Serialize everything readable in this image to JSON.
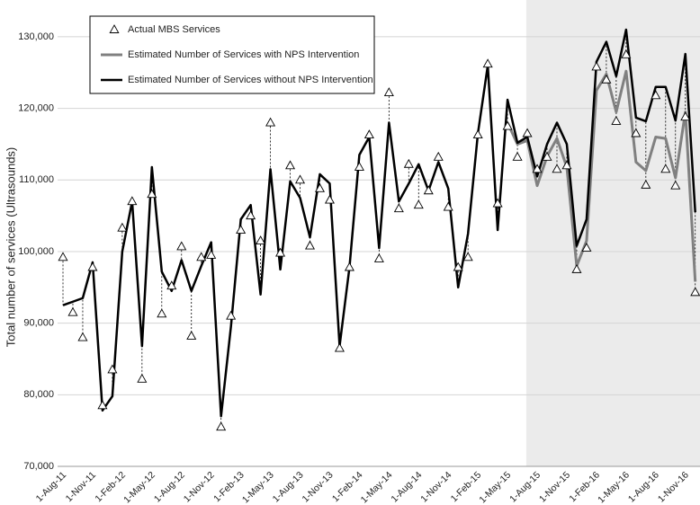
{
  "chart_data": {
    "type": "line",
    "y_label": "Total number of services (Ultrasounds)",
    "categories": [
      "1-Aug-11",
      null,
      null,
      "1-Nov-11",
      null,
      null,
      "1-Feb-12",
      null,
      null,
      "1-May-12",
      null,
      null,
      "1-Aug-12",
      null,
      null,
      "1-Nov-12",
      null,
      null,
      "1-Feb-13",
      null,
      null,
      "1-May-13",
      null,
      null,
      "1-Aug-13",
      null,
      null,
      "1-Nov-13",
      null,
      null,
      "1-Feb-14",
      null,
      null,
      "1-May-14",
      null,
      null,
      "1-Aug-14",
      null,
      null,
      "1-Nov-14",
      null,
      null,
      "1-Feb-15",
      null,
      null,
      "1-May-15",
      null,
      null,
      "1-Aug-15",
      null,
      null,
      "1-Nov-15",
      null,
      null,
      "1-Feb-16",
      null,
      null,
      "1-May-16",
      null,
      null,
      "1-Aug-16",
      null,
      null,
      "1-Nov-16",
      null
    ],
    "series": [
      {
        "name": "Actual MBS Services",
        "mode": "markers",
        "color": "#000000",
        "values": [
          99200,
          91500,
          88000,
          97800,
          78500,
          83500,
          103300,
          107000,
          82200,
          108000,
          91300,
          95200,
          100700,
          88200,
          99200,
          99500,
          75500,
          91000,
          103000,
          105000,
          101500,
          118000,
          99800,
          112000,
          110000,
          100800,
          108800,
          107200,
          86500,
          97800,
          111800,
          116300,
          99000,
          122200,
          106000,
          112200,
          106500,
          108500,
          113200,
          106200,
          97800,
          99200,
          116300,
          126200,
          106700,
          117500,
          113200,
          116500,
          111500,
          113200,
          111500,
          112000,
          97500,
          100500,
          125800,
          124000,
          118200,
          127500,
          116500,
          109300,
          121800,
          111500,
          109200,
          118800,
          94300
        ]
      },
      {
        "name": "Estimated Number of Services with NPS Intervention",
        "mode": "line",
        "color": "#808080",
        "values": [
          null,
          null,
          null,
          null,
          null,
          null,
          null,
          null,
          null,
          null,
          null,
          null,
          null,
          null,
          null,
          null,
          null,
          null,
          null,
          null,
          null,
          null,
          null,
          null,
          null,
          null,
          null,
          null,
          null,
          null,
          null,
          null,
          null,
          null,
          null,
          null,
          null,
          null,
          null,
          null,
          null,
          null,
          null,
          null,
          null,
          118000,
          115000,
          115500,
          109200,
          113300,
          115800,
          111800,
          98000,
          101500,
          122500,
          124800,
          119500,
          125200,
          112500,
          111300,
          116000,
          115800,
          110300,
          119500,
          95800
        ]
      },
      {
        "name": "Estimated Number of Services without NPS Intervention",
        "mode": "line",
        "color": "#000000",
        "values": [
          92500,
          93000,
          93500,
          98500,
          77800,
          79800,
          100000,
          107000,
          86800,
          111800,
          97200,
          94500,
          98800,
          94500,
          98000,
          101300,
          77000,
          89500,
          104500,
          106500,
          94000,
          111500,
          97500,
          109800,
          107500,
          102000,
          110800,
          109500,
          86800,
          97800,
          113500,
          116000,
          100500,
          118000,
          107000,
          109500,
          112200,
          108500,
          112500,
          108800,
          95000,
          102500,
          116500,
          126000,
          103000,
          121200,
          115200,
          116000,
          110500,
          115000,
          118000,
          115000,
          100800,
          104500,
          126500,
          129300,
          124500,
          131000,
          118700,
          118200,
          123000,
          123000,
          118300,
          127600,
          105500
        ]
      }
    ],
    "ylim": [
      70000,
      132000
    ],
    "yticks": [
      {
        "value": 70000,
        "label": "70,000"
      },
      {
        "value": 80000,
        "label": "80,000"
      },
      {
        "value": 90000,
        "label": "90,000"
      },
      {
        "value": 100000,
        "label": "100,000"
      },
      {
        "value": 110000,
        "label": "110,000"
      },
      {
        "value": 120000,
        "label": "120,000"
      },
      {
        "value": 130000,
        "label": "130,000"
      }
    ],
    "grid": true,
    "legend": "top-left"
  }
}
